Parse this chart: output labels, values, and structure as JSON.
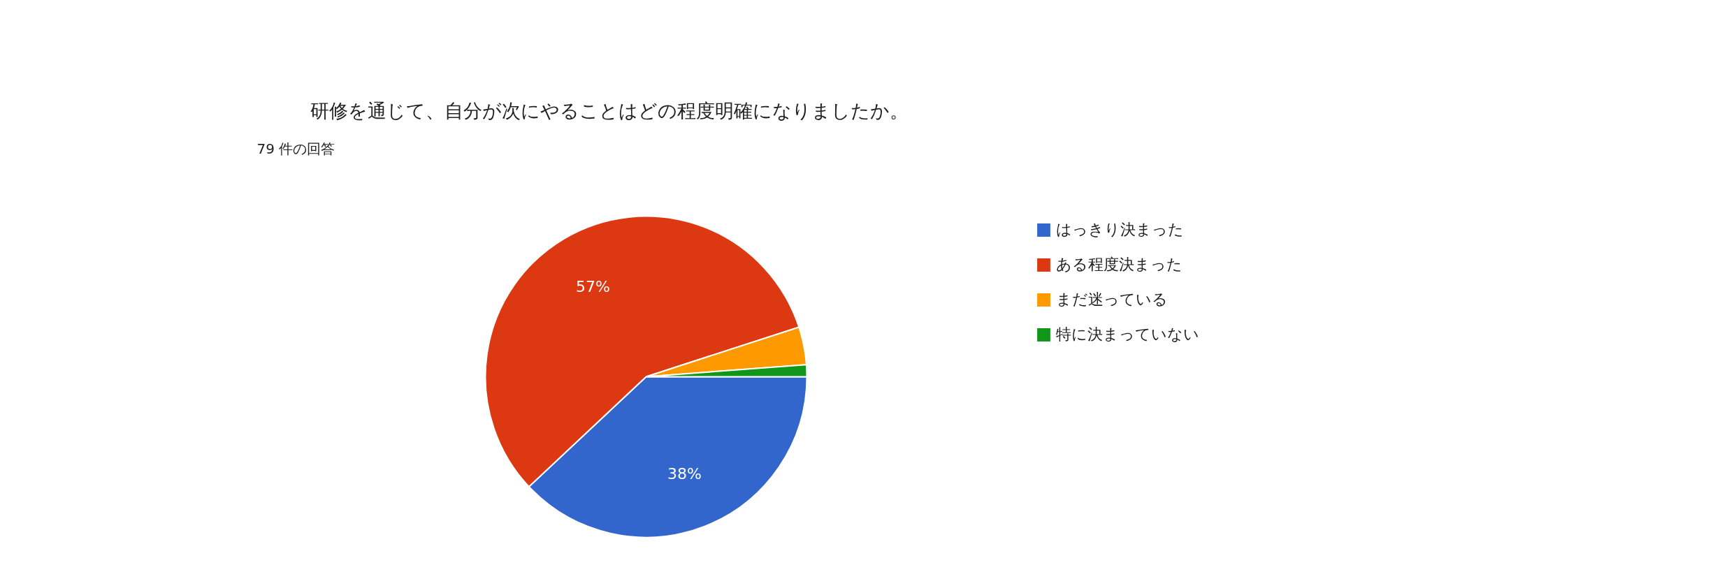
{
  "chart_data": {
    "type": "pie",
    "title": "研修を通じて、自分が次にやることはどの程度明確になりましたか。",
    "subtitle": "79 件の回答",
    "categories": [
      "はっきり決まった",
      "ある程度決まった",
      "まだ迷っている",
      "特に決まっていない"
    ],
    "values": [
      38,
      57,
      3.8,
      1.2
    ],
    "colors": [
      "#3366cc",
      "#dc3912",
      "#ff9900",
      "#109618"
    ],
    "value_labels": [
      "38%",
      "57%",
      null,
      null
    ],
    "legend": "right"
  }
}
